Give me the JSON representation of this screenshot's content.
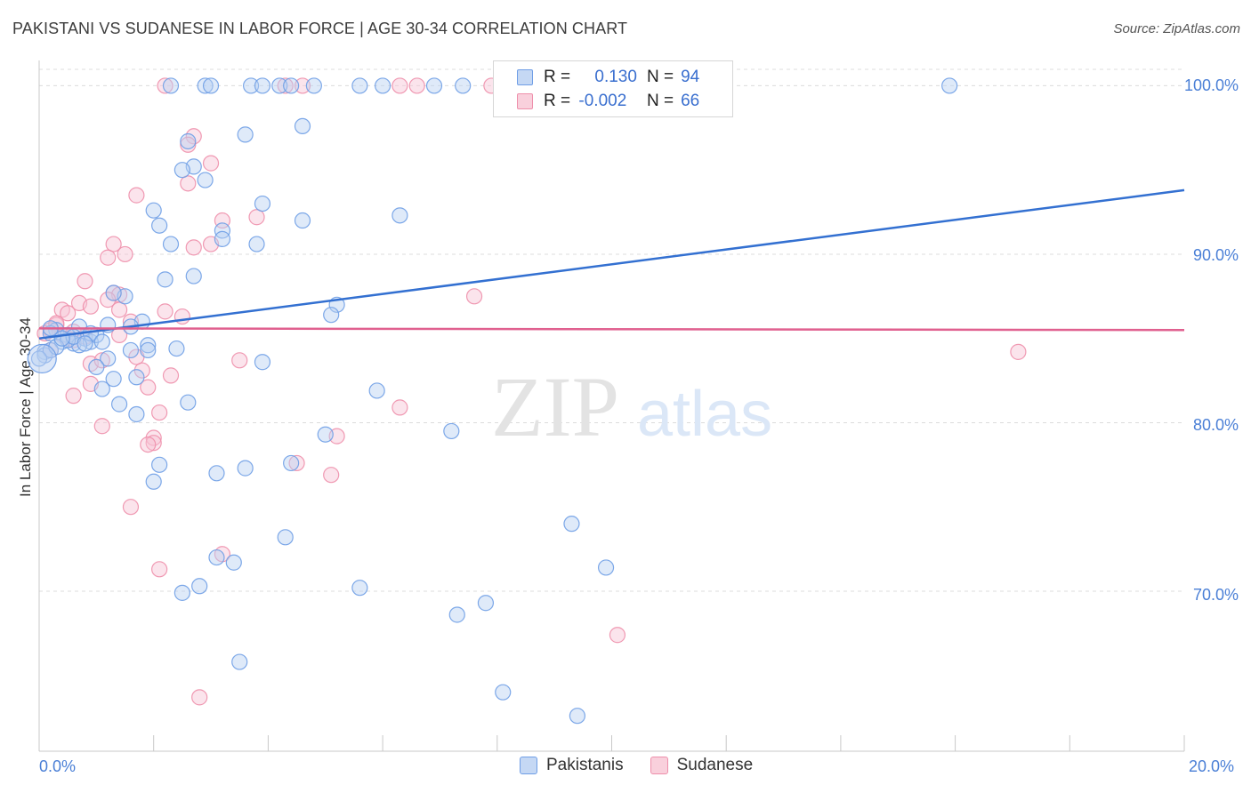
{
  "title": "PAKISTANI VS SUDANESE IN LABOR FORCE | AGE 30-34 CORRELATION CHART",
  "source": "Source: ZipAtlas.com",
  "watermark": {
    "zip": "ZIP",
    "atlas": "atlas"
  },
  "legend": {
    "rows": [
      {
        "r_label": "R =",
        "r_value": "0.130",
        "n_label": "N =",
        "n_value": "94",
        "color": "#6f9ee6"
      },
      {
        "r_label": "R =",
        "r_value": "-0.002",
        "n_label": "N =",
        "n_value": "66",
        "color": "#ee8fab"
      }
    ]
  },
  "bottom_legend": {
    "items": [
      "Pakistanis",
      "Sudanese"
    ]
  },
  "chart_data": {
    "type": "scatter",
    "title": "PAKISTANI VS SUDANESE IN LABOR FORCE | AGE 30-34 CORRELATION CHART",
    "xlabel": "",
    "ylabel": "In Labor Force | Age 30-34",
    "xlim": [
      0,
      20
    ],
    "ylim": [
      60.5,
      101.5
    ],
    "x_tick_labels": [
      "0.0%",
      "20.0%"
    ],
    "y_ticks": [
      70,
      80,
      90,
      100
    ],
    "y_tick_labels": [
      "70.0%",
      "80.0%",
      "90.0%",
      "100.0%"
    ],
    "grid": true,
    "series": [
      {
        "name": "Pakistanis",
        "color": "#6f9ee6",
        "line_color": "#3370d1",
        "trend": {
          "x": [
            0,
            20
          ],
          "y": [
            85.0,
            93.8
          ]
        },
        "points": [
          [
            2.3,
            100
          ],
          [
            2.9,
            100
          ],
          [
            3.7,
            100
          ],
          [
            3.9,
            100
          ],
          [
            4.2,
            100
          ],
          [
            4.4,
            100
          ],
          [
            4.8,
            100
          ],
          [
            5.6,
            100
          ],
          [
            6.0,
            100
          ],
          [
            6.9,
            100
          ],
          [
            7.4,
            100
          ],
          [
            9.8,
            100
          ],
          [
            15.9,
            100
          ],
          [
            3.0,
            100
          ],
          [
            3.6,
            97.1
          ],
          [
            4.6,
            97.6
          ],
          [
            2.6,
            96.7
          ],
          [
            2.7,
            95.2
          ],
          [
            2.5,
            95.0
          ],
          [
            2.9,
            94.4
          ],
          [
            3.9,
            93.0
          ],
          [
            2.0,
            92.6
          ],
          [
            6.3,
            92.3
          ],
          [
            4.6,
            92.0
          ],
          [
            2.1,
            91.7
          ],
          [
            3.2,
            91.4
          ],
          [
            2.3,
            90.6
          ],
          [
            3.8,
            90.6
          ],
          [
            3.2,
            90.9
          ],
          [
            2.7,
            88.7
          ],
          [
            2.2,
            88.5
          ],
          [
            1.5,
            87.5
          ],
          [
            1.3,
            87.7
          ],
          [
            5.2,
            87.0
          ],
          [
            5.1,
            86.4
          ],
          [
            1.8,
            86.0
          ],
          [
            1.2,
            85.8
          ],
          [
            1.6,
            85.7
          ],
          [
            0.3,
            85.5
          ],
          [
            0.5,
            85.2
          ],
          [
            0.6,
            84.7
          ],
          [
            0.8,
            85.0
          ],
          [
            0.9,
            84.8
          ],
          [
            0.4,
            84.8
          ],
          [
            0.7,
            84.6
          ],
          [
            0.2,
            85.3
          ],
          [
            1.0,
            85.2
          ],
          [
            0.1,
            84.2
          ],
          [
            0.1,
            84.0
          ],
          [
            0.2,
            84.3
          ],
          [
            1.9,
            84.6
          ],
          [
            1.9,
            84.3
          ],
          [
            2.4,
            84.4
          ],
          [
            1.6,
            84.3
          ],
          [
            1.2,
            83.8
          ],
          [
            1.0,
            83.3
          ],
          [
            3.9,
            83.6
          ],
          [
            1.7,
            82.7
          ],
          [
            1.3,
            82.6
          ],
          [
            1.1,
            82.0
          ],
          [
            2.6,
            81.2
          ],
          [
            5.9,
            81.9
          ],
          [
            1.4,
            81.1
          ],
          [
            1.7,
            80.5
          ],
          [
            5.0,
            79.3
          ],
          [
            7.2,
            79.5
          ],
          [
            2.1,
            77.5
          ],
          [
            3.6,
            77.3
          ],
          [
            4.4,
            77.6
          ],
          [
            3.1,
            77.0
          ],
          [
            2.0,
            76.5
          ],
          [
            9.3,
            74.0
          ],
          [
            4.3,
            73.2
          ],
          [
            3.1,
            72.0
          ],
          [
            3.4,
            71.7
          ],
          [
            9.9,
            71.4
          ],
          [
            2.8,
            70.3
          ],
          [
            2.5,
            69.9
          ],
          [
            5.6,
            70.2
          ],
          [
            7.8,
            69.3
          ],
          [
            7.3,
            68.6
          ],
          [
            3.5,
            65.8
          ],
          [
            8.1,
            64.0
          ],
          [
            9.4,
            62.6
          ],
          [
            0.7,
            85.7
          ],
          [
            0.5,
            84.9
          ],
          [
            0.9,
            85.3
          ],
          [
            0.3,
            84.5
          ],
          [
            0.6,
            85.1
          ],
          [
            1.1,
            84.8
          ],
          [
            0.2,
            85.6
          ],
          [
            0.0,
            83.8
          ],
          [
            0.4,
            85.0
          ],
          [
            0.8,
            84.7
          ]
        ]
      },
      {
        "name": "Sudanese",
        "color": "#ee8fab",
        "line_color": "#e0608f",
        "trend": {
          "x": [
            0,
            20
          ],
          "y": [
            85.6,
            85.5
          ]
        },
        "points": [
          [
            2.2,
            100
          ],
          [
            4.3,
            100
          ],
          [
            4.6,
            100
          ],
          [
            6.3,
            100
          ],
          [
            6.6,
            100
          ],
          [
            7.9,
            100
          ],
          [
            2.7,
            97.0
          ],
          [
            2.6,
            96.5
          ],
          [
            3.0,
            95.4
          ],
          [
            2.6,
            94.2
          ],
          [
            1.7,
            93.5
          ],
          [
            3.2,
            92.0
          ],
          [
            3.8,
            92.2
          ],
          [
            2.7,
            90.4
          ],
          [
            3.0,
            90.6
          ],
          [
            1.3,
            90.6
          ],
          [
            1.5,
            90.0
          ],
          [
            1.2,
            89.8
          ],
          [
            0.8,
            88.4
          ],
          [
            1.3,
            87.7
          ],
          [
            1.4,
            87.6
          ],
          [
            7.6,
            87.5
          ],
          [
            1.2,
            87.3
          ],
          [
            0.7,
            87.1
          ],
          [
            0.9,
            86.9
          ],
          [
            0.4,
            86.7
          ],
          [
            0.5,
            86.5
          ],
          [
            2.2,
            86.6
          ],
          [
            2.5,
            86.3
          ],
          [
            1.6,
            86.0
          ],
          [
            1.4,
            86.7
          ],
          [
            0.3,
            85.8
          ],
          [
            0.2,
            85.5
          ],
          [
            0.4,
            85.2
          ],
          [
            0.6,
            85.4
          ],
          [
            1.4,
            85.2
          ],
          [
            0.1,
            85.3
          ],
          [
            0.5,
            85.0
          ],
          [
            0.9,
            83.5
          ],
          [
            1.1,
            83.7
          ],
          [
            1.7,
            83.9
          ],
          [
            3.5,
            83.7
          ],
          [
            2.3,
            82.8
          ],
          [
            1.8,
            83.1
          ],
          [
            0.9,
            82.3
          ],
          [
            1.9,
            82.1
          ],
          [
            0.6,
            81.6
          ],
          [
            6.3,
            80.9
          ],
          [
            2.1,
            80.6
          ],
          [
            1.1,
            79.8
          ],
          [
            2.0,
            79.1
          ],
          [
            2.0,
            78.8
          ],
          [
            1.9,
            78.7
          ],
          [
            5.2,
            79.2
          ],
          [
            4.5,
            77.6
          ],
          [
            5.1,
            76.9
          ],
          [
            1.6,
            75.0
          ],
          [
            3.2,
            72.2
          ],
          [
            2.1,
            71.3
          ],
          [
            10.1,
            67.4
          ],
          [
            2.8,
            63.7
          ],
          [
            17.1,
            84.2
          ],
          [
            0.2,
            84.3
          ],
          [
            0.3,
            85.9
          ],
          [
            0.6,
            84.9
          ],
          [
            0.8,
            85.1
          ]
        ]
      }
    ]
  }
}
